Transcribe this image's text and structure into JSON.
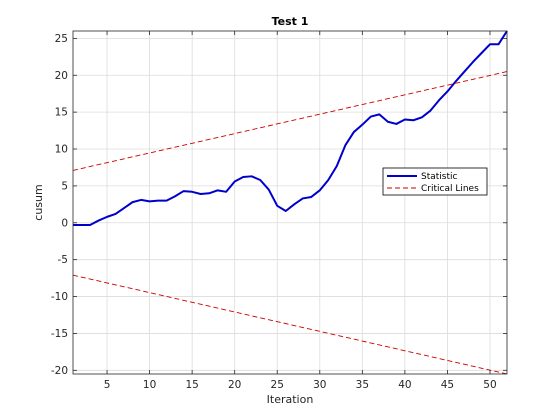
{
  "chart_data": {
    "type": "line",
    "title": "Test 1",
    "xlabel": "Iteration",
    "ylabel": "cusum",
    "xlim": [
      1,
      52
    ],
    "ylim": [
      -20.5,
      26
    ],
    "xticks": [
      5,
      10,
      15,
      20,
      25,
      30,
      35,
      40,
      45,
      50
    ],
    "yticks": [
      -20,
      -15,
      -10,
      -5,
      0,
      5,
      10,
      15,
      20,
      25
    ],
    "grid": true,
    "legend_position": "center-right",
    "series": [
      {
        "name": "Statistic",
        "color": "#0000cc",
        "style": "solid",
        "x": [
          1,
          2,
          3,
          4,
          5,
          6,
          7,
          8,
          9,
          10,
          11,
          12,
          13,
          14,
          15,
          16,
          17,
          18,
          19,
          20,
          21,
          22,
          23,
          24,
          25,
          26,
          27,
          28,
          29,
          30,
          31,
          32,
          33,
          34,
          35,
          36,
          37,
          38,
          39,
          40,
          41,
          42,
          43,
          44,
          45,
          46,
          47,
          48,
          49,
          50,
          51,
          52
        ],
        "values": [
          -0.3,
          -0.3,
          -0.3,
          0.3,
          0.8,
          1.2,
          2.0,
          2.8,
          3.1,
          2.9,
          3.0,
          3.0,
          3.6,
          4.3,
          4.2,
          3.9,
          4.0,
          4.4,
          4.2,
          5.6,
          6.2,
          6.3,
          5.8,
          4.5,
          2.3,
          1.6,
          2.5,
          3.3,
          3.5,
          4.4,
          5.8,
          7.7,
          10.5,
          12.3,
          13.3,
          14.4,
          14.7,
          13.7,
          13.4,
          14.0,
          13.9,
          14.3,
          15.2,
          16.6,
          17.8,
          19.2,
          20.5,
          21.8,
          23.0,
          24.2,
          24.2,
          26.0
        ]
      },
      {
        "name": "Critical Lines",
        "color": "#cc0000",
        "style": "dashed",
        "x": [
          1,
          52
        ],
        "values": [
          7.1,
          20.5
        ]
      },
      {
        "name": "",
        "color": "#cc0000",
        "style": "dashed",
        "x": [
          1,
          52
        ],
        "values": [
          -7.1,
          -20.5
        ]
      }
    ]
  }
}
